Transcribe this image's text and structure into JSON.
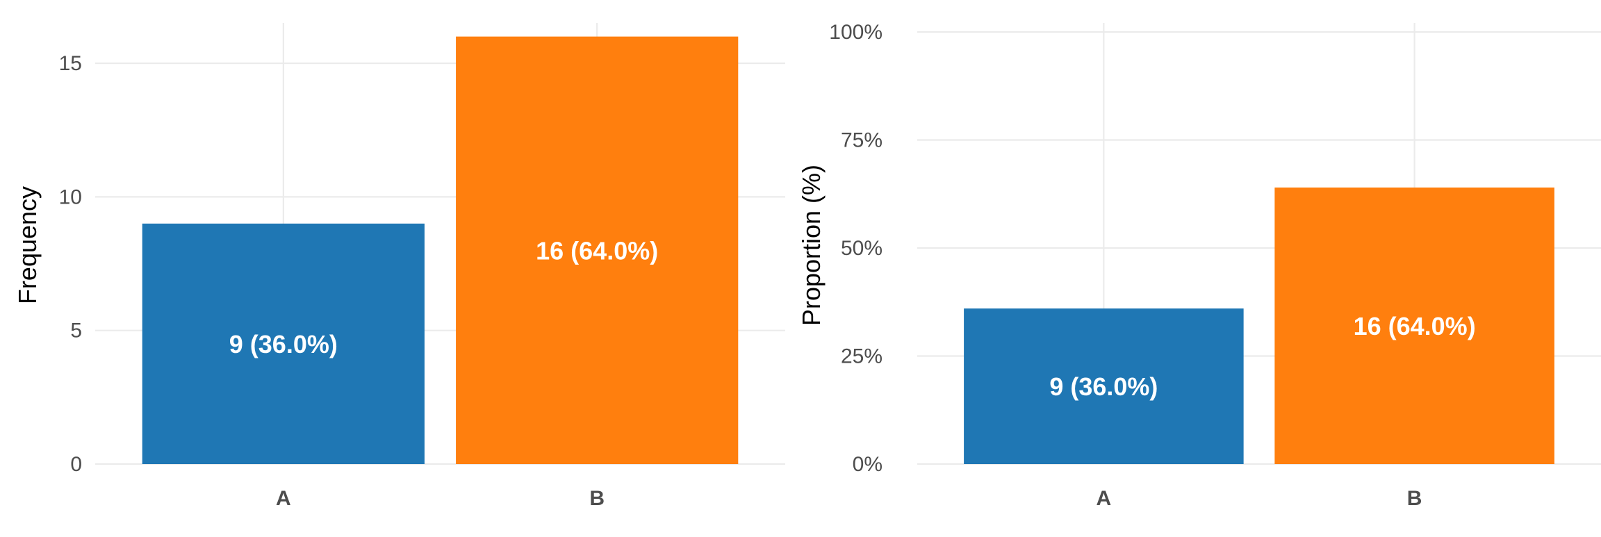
{
  "colors": {
    "A": "#1f77b4",
    "B": "#ff7f0e",
    "grid": "#ebebeb"
  },
  "chart_data": [
    {
      "type": "bar",
      "categories": [
        "A",
        "B"
      ],
      "values": [
        9,
        16
      ],
      "labels": [
        "9 (36.0%)",
        "16 (64.0%)"
      ],
      "xlabel": "",
      "ylabel": "Frequency",
      "ylim": [
        0,
        16
      ],
      "yticks": [
        0,
        5,
        10,
        15
      ],
      "ytick_labels": [
        "0",
        "5",
        "10",
        "15"
      ],
      "grid": true,
      "legend": "none"
    },
    {
      "type": "bar",
      "categories": [
        "A",
        "B"
      ],
      "values": [
        36.0,
        64.0
      ],
      "labels": [
        "9 (36.0%)",
        "16 (64.0%)"
      ],
      "xlabel": "",
      "ylabel": "Proportion (%)",
      "ylim": [
        0,
        100
      ],
      "yticks": [
        0,
        25,
        50,
        75,
        100
      ],
      "ytick_labels": [
        "0%",
        "25%",
        "50%",
        "75%",
        "100%"
      ],
      "grid": true,
      "legend": "none"
    }
  ]
}
